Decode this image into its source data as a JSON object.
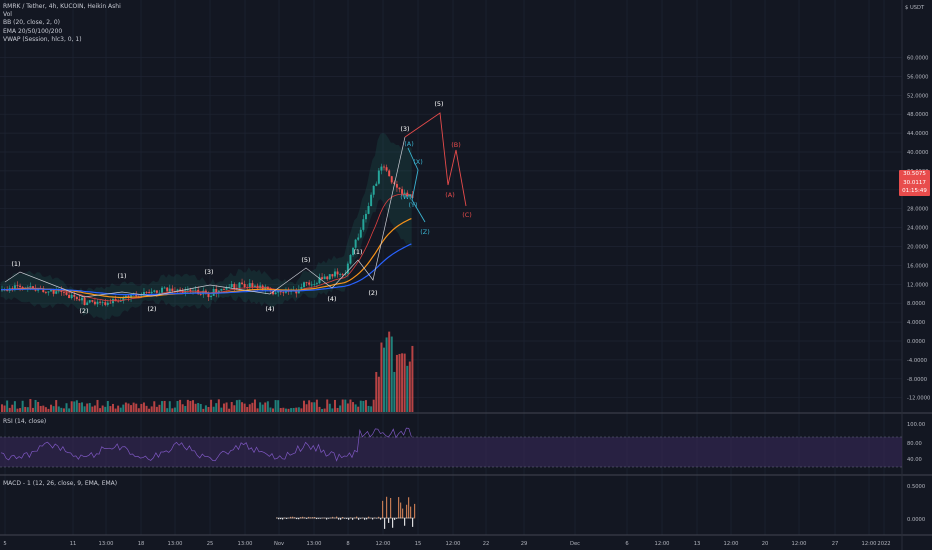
{
  "legend": {
    "symbol": "RMRK / Tether, 4h, KUCOIN, Heikin Ashi",
    "lines": [
      "Vol",
      "BB (20, close, 2, 0)",
      "EMA 20/50/100/200",
      "VWAP (Session, hlc3, 0, 1)"
    ]
  },
  "panes": {
    "rsi_title": "RSI (14, close)",
    "macd_title": "MACD - 1 (12, 26, close, 9, EMA, EMA)"
  },
  "price_axis": {
    "currency": "$ USDT",
    "labels": [
      "60.0000",
      "56.0000",
      "52.0000",
      "48.0000",
      "44.0000",
      "40.0000",
      "36.0000",
      "32.0000",
      "28.0000",
      "24.0000",
      "20.0000",
      "16.0000",
      "12.0000",
      "8.0000",
      "4.0000",
      "0.0000",
      "-4.0000",
      "-8.0000",
      "-12.0000"
    ],
    "rsi_labels": [
      "100.00",
      "80.00",
      "40.00"
    ],
    "macd_labels": [
      "0.5000",
      "0.0000"
    ],
    "tag": [
      "30.5075",
      "30.0117",
      "01:15:49"
    ]
  },
  "time_axis": [
    "5",
    "11",
    "13:00",
    "18",
    "13:00",
    "25",
    "13:00",
    "Nov",
    "13:00",
    "8",
    "12:00",
    "15",
    "12:00",
    "22",
    "29",
    "Dec",
    "6",
    "12:00",
    "13",
    "12:00",
    "20",
    "12:00",
    "27",
    "12:00",
    "2022"
  ],
  "waves": {
    "white": [
      "(1)",
      "(2)",
      "(1)",
      "(2)",
      "(3)",
      "(4)",
      "(5)",
      "(4)",
      "(1)",
      "(2)",
      "(3)",
      "(5)"
    ],
    "cyan": [
      "(A)",
      "(X)",
      "(W)",
      "(Y)",
      "(Z)"
    ],
    "red": [
      "(B)",
      "(A)",
      "(C)"
    ]
  },
  "colors": {
    "background": "#131722",
    "grid": "#1f2433",
    "axis_text": "#b2b5be",
    "candle_up": "#26a69a",
    "candle_down": "#ef5350",
    "bb_band": "#1f7a6e",
    "ema_orange": "#f7931a",
    "ema_blue": "#2962ff",
    "ema_red": "#e04040",
    "rsi_line": "#7e57c2",
    "rsi_band": "#3b2a5c",
    "wave_white": "#ffffff",
    "wave_cyan": "#3ab3d0",
    "wave_red": "#e64b4b"
  },
  "chart_data": {
    "type": "candlestick",
    "title": "RMRK / Tether, 4h, KUCOIN, Heikin Ashi",
    "x_ticks": [
      "5",
      "11",
      "13:00",
      "18",
      "13:00",
      "25",
      "13:00",
      "Nov",
      "13:00",
      "8",
      "12:00",
      "15",
      "12:00",
      "22",
      "29",
      "Dec",
      "6",
      "12:00",
      "13",
      "12:00",
      "20",
      "12:00",
      "27",
      "12:00",
      "2022"
    ],
    "y_ticks": [
      "60.0000",
      "56.0000",
      "52.0000",
      "48.0000",
      "44.0000",
      "40.0000",
      "36.0000",
      "32.0000",
      "28.0000",
      "24.0000",
      "20.0000",
      "16.0000",
      "12.0000",
      "8.0000",
      "4.0000",
      "0.0000",
      "-4.0000",
      "-8.0000",
      "-12.0000"
    ],
    "ylim": [
      -13,
      64
    ],
    "last_price": 30.5075,
    "projection_points": [
      [
        0.0,
        38.5
      ],
      [
        0.36,
        42.0
      ],
      [
        0.44,
        33.0
      ],
      [
        0.56,
        26.0
      ]
    ]
  }
}
